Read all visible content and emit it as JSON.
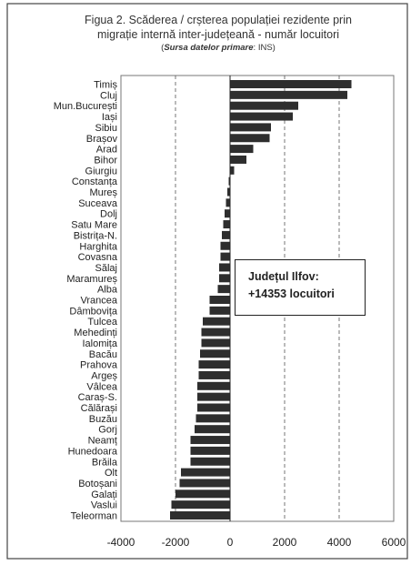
{
  "title": {
    "line1": "Figua 2. Scăderea / crșterea populației rezidente prin",
    "line2": "migrație internă inter-județeană - număr locuitori",
    "source_label": "Sursa datelor primare",
    "source_value": ": INS)"
  },
  "annotation": {
    "line1": "Județul Ilfov:",
    "line2": "+14353 locuitori"
  },
  "chart_data": {
    "type": "bar",
    "orientation": "horizontal",
    "categories": [
      "Timiș",
      "Cluj",
      "Mun.București",
      "Iași",
      "Sibiu",
      "Brașov",
      "Arad",
      "Bihor",
      "Giurgiu",
      "Constanța",
      "Mureș",
      "Suceava",
      "Dolj",
      "Satu Mare",
      "Bistrița-N.",
      "Harghita",
      "Covasna",
      "Sălaj",
      "Maramureș",
      "Alba",
      "Vrancea",
      "Dâmbovița",
      "Tulcea",
      "Mehedinți",
      "Ialomița",
      "Bacău",
      "Prahova",
      "Argeș",
      "Vâlcea",
      "Caraș-S.",
      "Călărași",
      "Buzău",
      "Gorj",
      "Neamț",
      "Hunedoara",
      "Brăila",
      "Olt",
      "Botoșani",
      "Galați",
      "Vaslui",
      "Teleorman"
    ],
    "values": [
      4450,
      4300,
      2500,
      2300,
      1500,
      1450,
      850,
      600,
      150,
      -50,
      -100,
      -150,
      -200,
      -250,
      -300,
      -350,
      -350,
      -400,
      -400,
      -450,
      -750,
      -750,
      -1000,
      -1050,
      -1050,
      -1100,
      -1150,
      -1150,
      -1200,
      -1200,
      -1200,
      -1250,
      -1300,
      -1450,
      -1450,
      -1450,
      -1800,
      -1850,
      -2000,
      -2150,
      -2200
    ],
    "xlim": [
      -4000,
      6000
    ],
    "xticks": [
      "-4000",
      "-2000",
      "0",
      "2000",
      "4000",
      "6000"
    ],
    "grid": "vertical dashed",
    "bar_color": "#2e2e2e"
  }
}
